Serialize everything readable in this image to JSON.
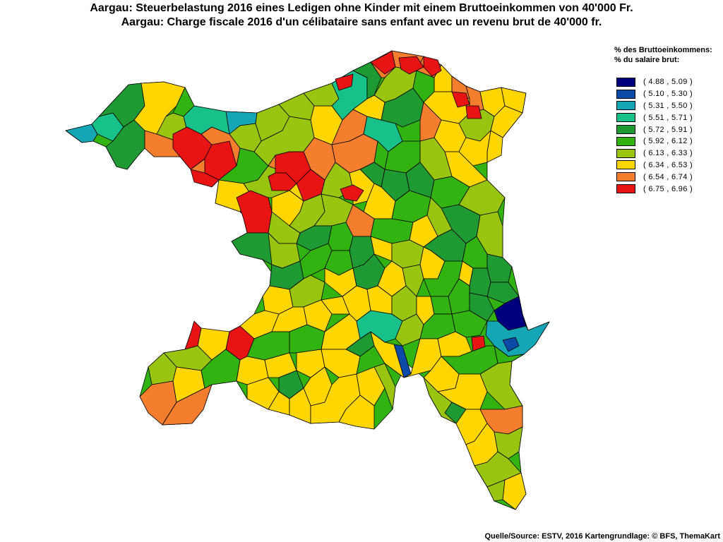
{
  "title": {
    "de": "Aargau: Steuerbelastung 2016 eines Ledigen ohne Kinder mit einem Bruttoeinkommen von 40'000 Fr.",
    "fr": "Aargau: Charge fiscale 2016 d'un célibataire sans enfant avec un revenu brut de 40'000 fr."
  },
  "legend": {
    "title_de": "% des Bruttoeinkommens:",
    "title_fr": "% du salaire brut:",
    "classes": [
      {
        "label": "( 4.88 , 5.09 )",
        "color": "#00007f"
      },
      {
        "label": "( 5.10 , 5.30 )",
        "color": "#0b4aa6"
      },
      {
        "label": "( 5.31 , 5.50 )",
        "color": "#15a6b5"
      },
      {
        "label": "( 5.51 , 5.71 )",
        "color": "#18c18a"
      },
      {
        "label": "( 5.72 , 5.91 )",
        "color": "#1f9a33"
      },
      {
        "label": "( 5.92 , 6.12 )",
        "color": "#33b311"
      },
      {
        "label": "( 6.13 , 6.33 )",
        "color": "#99c511"
      },
      {
        "label": "( 6.34 , 6.53 )",
        "color": "#ffd600"
      },
      {
        "label": "( 6.54 , 6.74 )",
        "color": "#f57e2e"
      },
      {
        "label": "( 6.75 , 6.96 )",
        "color": "#e81414"
      }
    ]
  },
  "source": "Quelle/Source: ESTV, 2016 Kartengrundlage: © BFS, ThemaKart"
}
